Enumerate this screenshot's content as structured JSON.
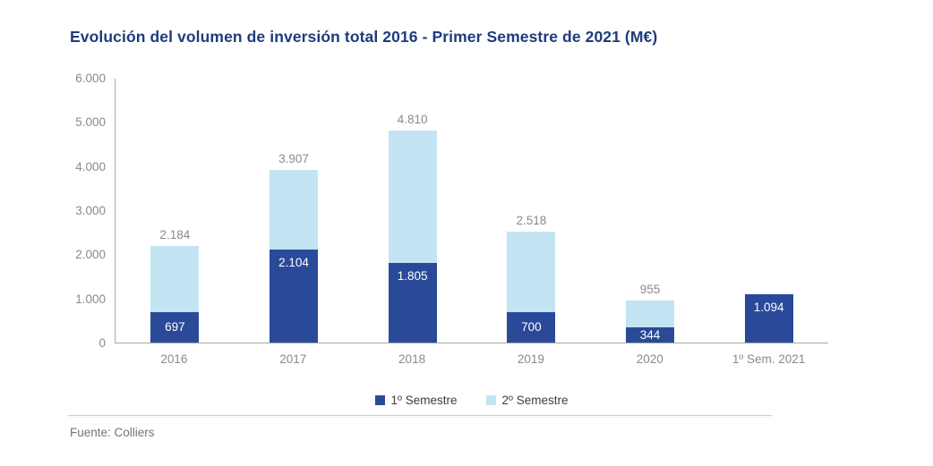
{
  "title": "Evolución del volumen de inversión total 2016 - Primer Semestre de 2021 (M€)",
  "source": "Fuente: Colliers",
  "colors": {
    "title": "#1e3c7d",
    "semestre1": "#2a4a99",
    "semestre2": "#c3e4f2",
    "axis": "#a8a8a8",
    "tick_text": "#8a8a8a",
    "legend_text": "#3d3d3d"
  },
  "chart_data": {
    "type": "bar",
    "stacked": true,
    "title": "Evolución del volumen de inversión total 2016 - Primer Semestre de 2021 (M€)",
    "categories": [
      "2016",
      "2017",
      "2018",
      "2019",
      "2020",
      "1º Sem. 2021"
    ],
    "series": [
      {
        "name": "1º Semestre",
        "color": "#2a4a99",
        "values": [
          697,
          2104,
          1805,
          700,
          344,
          1094
        ]
      },
      {
        "name": "2º Semestre",
        "color": "#c3e4f2",
        "values": [
          1487,
          1803,
          3005,
          1818,
          611,
          0
        ]
      }
    ],
    "totals": [
      2184,
      3907,
      4810,
      2518,
      955,
      1094
    ],
    "bar_labels": [
      "697",
      "2.104",
      "1.805",
      "700",
      "344",
      "1.094"
    ],
    "total_labels": [
      "2.184",
      "3.907",
      "4.810",
      "2.518",
      "955",
      ""
    ],
    "y_ticks": [
      "6.000",
      "5.000",
      "4.000",
      "3.000",
      "2.000",
      "1.000",
      "0"
    ],
    "ylim": [
      0,
      6000
    ],
    "xlabel": "",
    "ylabel": "",
    "grid": false,
    "legend_position": "bottom"
  }
}
